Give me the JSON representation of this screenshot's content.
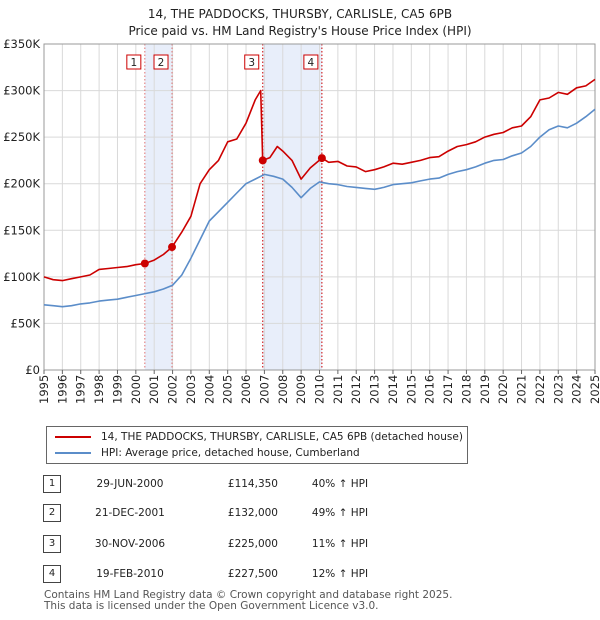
{
  "title_line1": "14, THE PADDOCKS, THURSBY, CARLISLE, CA5 6PB",
  "title_line2": "Price paid vs. HM Land Registry's House Price Index (HPI)",
  "legend": {
    "property": "14, THE PADDOCKS, THURSBY, CARLISLE, CA5 6PB (detached house)",
    "hpi": "HPI: Average price, detached house, Cumberland"
  },
  "colors": {
    "property": "#cc0000",
    "hpi": "#5b8dc9",
    "band": "#e8eefa",
    "grid": "#d9d9d9"
  },
  "sales": [
    {
      "num": "1",
      "date": "29-JUN-2000",
      "price": "£114,350",
      "pct": "40% ↑ HPI"
    },
    {
      "num": "2",
      "date": "21-DEC-2001",
      "price": "£132,000",
      "pct": "49% ↑ HPI"
    },
    {
      "num": "3",
      "date": "30-NOV-2006",
      "price": "£225,000",
      "pct": "11% ↑ HPI"
    },
    {
      "num": "4",
      "date": "19-FEB-2010",
      "price": "£227,500",
      "pct": "12% ↑ HPI"
    }
  ],
  "footer_line1": "Contains HM Land Registry data © Crown copyright and database right 2025.",
  "footer_line2": "This data is licensed under the Open Government Licence v3.0.",
  "chart_data": {
    "type": "line",
    "title": "14, THE PADDOCKS, THURSBY, CARLISLE, CA5 6PB — Price paid vs. HM Land Registry's House Price Index (HPI)",
    "xlabel": "",
    "ylabel": "",
    "xlim": [
      1995,
      2025
    ],
    "ylim": [
      0,
      350000
    ],
    "y_ticks": [
      {
        "value": 0,
        "label": "£0"
      },
      {
        "value": 50000,
        "label": "£50K"
      },
      {
        "value": 100000,
        "label": "£100K"
      },
      {
        "value": 150000,
        "label": "£150K"
      },
      {
        "value": 200000,
        "label": "£200K"
      },
      {
        "value": 250000,
        "label": "£250K"
      },
      {
        "value": 300000,
        "label": "£300K"
      },
      {
        "value": 350000,
        "label": "£350K"
      }
    ],
    "x_ticks": [
      "1995",
      "1996",
      "1997",
      "1998",
      "1999",
      "2000",
      "2001",
      "2002",
      "2003",
      "2004",
      "2005",
      "2006",
      "2007",
      "2008",
      "2009",
      "2010",
      "2011",
      "2012",
      "2013",
      "2014",
      "2015",
      "2016",
      "2017",
      "2018",
      "2019",
      "2020",
      "2021",
      "2022",
      "2023",
      "2024",
      "2025"
    ],
    "shaded_bands": [
      [
        2000.49,
        2001.97
      ],
      [
        2006.91,
        2010.13
      ]
    ],
    "series": [
      {
        "name": "14, THE PADDOCKS, THURSBY, CARLISLE, CA5 6PB (detached house)",
        "x": [
          1995,
          1995.5,
          1996,
          1996.5,
          1997,
          1997.5,
          1998,
          1998.5,
          1999,
          1999.5,
          2000,
          2000.49,
          2001,
          2001.5,
          2001.97,
          2002.5,
          2003,
          2003.5,
          2004,
          2004.5,
          2005,
          2005.5,
          2006,
          2006.5,
          2006.8,
          2006.91,
          2007.3,
          2007.7,
          2008,
          2008.5,
          2009,
          2009.5,
          2010.13,
          2010.5,
          2011,
          2011.5,
          2012,
          2012.5,
          2013,
          2013.5,
          2014,
          2014.5,
          2015,
          2015.5,
          2016,
          2016.5,
          2017,
          2017.5,
          2018,
          2018.5,
          2019,
          2019.5,
          2020,
          2020.5,
          2021,
          2021.5,
          2022,
          2022.5,
          2023,
          2023.5,
          2024,
          2024.5,
          2025
        ],
        "values": [
          100000,
          97000,
          96000,
          98000,
          100000,
          102000,
          108000,
          109000,
          110000,
          111000,
          113000,
          114350,
          118000,
          124000,
          132000,
          148000,
          165000,
          200000,
          215000,
          225000,
          245000,
          248000,
          265000,
          290000,
          300000,
          225000,
          228000,
          240000,
          235000,
          225000,
          205000,
          217000,
          227500,
          223000,
          224000,
          219000,
          218000,
          213000,
          215000,
          218000,
          222000,
          221000,
          223000,
          225000,
          228000,
          229000,
          235000,
          240000,
          242000,
          245000,
          250000,
          253000,
          255000,
          260000,
          262000,
          272000,
          290000,
          292000,
          298000,
          296000,
          303000,
          305000,
          312000
        ]
      },
      {
        "name": "HPI: Average price, detached house, Cumberland",
        "x": [
          1995,
          1995.5,
          1996,
          1996.5,
          1997,
          1997.5,
          1998,
          1998.5,
          1999,
          1999.5,
          2000,
          2000.5,
          2001,
          2001.5,
          2002,
          2002.5,
          2003,
          2003.5,
          2004,
          2004.5,
          2005,
          2005.5,
          2006,
          2006.5,
          2007,
          2007.5,
          2008,
          2008.5,
          2009,
          2009.5,
          2010,
          2010.5,
          2011,
          2011.5,
          2012,
          2012.5,
          2013,
          2013.5,
          2014,
          2014.5,
          2015,
          2015.5,
          2016,
          2016.5,
          2017,
          2017.5,
          2018,
          2018.5,
          2019,
          2019.5,
          2020,
          2020.5,
          2021,
          2021.5,
          2022,
          2022.5,
          2023,
          2023.5,
          2024,
          2024.5,
          2025
        ],
        "values": [
          70000,
          69000,
          68000,
          69000,
          71000,
          72000,
          74000,
          75000,
          76000,
          78000,
          80000,
          82000,
          84000,
          87000,
          91000,
          102000,
          120000,
          140000,
          160000,
          170000,
          180000,
          190000,
          200000,
          205000,
          210000,
          208000,
          205000,
          196000,
          185000,
          195000,
          202000,
          200000,
          199000,
          197000,
          196000,
          195000,
          194000,
          196000,
          199000,
          200000,
          201000,
          203000,
          205000,
          206000,
          210000,
          213000,
          215000,
          218000,
          222000,
          225000,
          226000,
          230000,
          233000,
          240000,
          250000,
          258000,
          262000,
          260000,
          265000,
          272000,
          280000
        ]
      }
    ],
    "sale_markers": [
      {
        "label": "1",
        "x": 2000.49,
        "value": 114350
      },
      {
        "label": "2",
        "x": 2001.97,
        "value": 132000
      },
      {
        "label": "3",
        "x": 2006.91,
        "value": 225000
      },
      {
        "label": "4",
        "x": 2010.13,
        "value": 227500
      }
    ]
  }
}
